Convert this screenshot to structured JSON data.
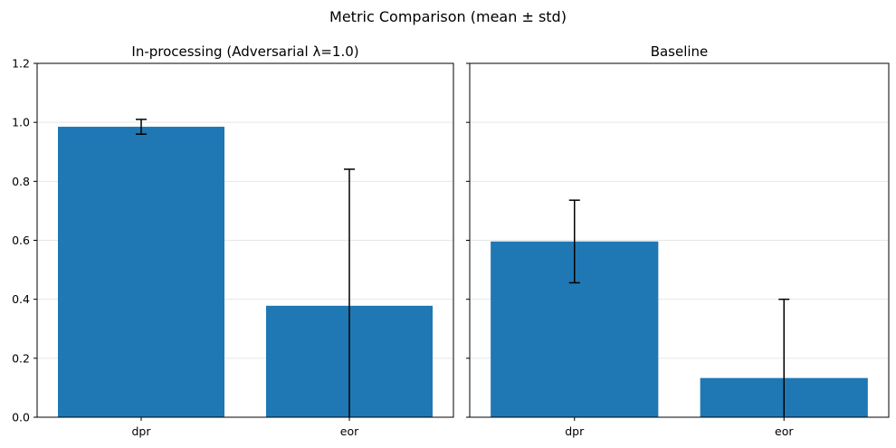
{
  "figure": {
    "title": "Metric Comparison (mean ± std)"
  },
  "colors": {
    "bar": "#1f77b4",
    "errorbar": "#000000",
    "grid": "#e6e6e6",
    "axes": "#000000"
  },
  "chart_data": [
    {
      "type": "bar",
      "title": "In-processing (Adversarial λ=1.0)",
      "xlabel": "",
      "ylabel": "",
      "categories": [
        "dpr",
        "eor"
      ],
      "values": [
        0.985,
        0.378
      ],
      "errors": [
        0.025,
        0.463
      ],
      "ylim": [
        0,
        1.2
      ],
      "yticks": [
        0.0,
        0.2,
        0.4,
        0.6,
        0.8,
        1.0,
        1.2
      ],
      "ytick_labels": [
        "0.0",
        "0.2",
        "0.4",
        "0.6",
        "0.8",
        "1.0",
        "1.2"
      ],
      "show_ytick_labels": true,
      "grid": "y"
    },
    {
      "type": "bar",
      "title": "Baseline",
      "xlabel": "",
      "ylabel": "",
      "categories": [
        "dpr",
        "eor"
      ],
      "values": [
        0.596,
        0.133
      ],
      "errors": [
        0.14,
        0.267
      ],
      "ylim": [
        0,
        1.2
      ],
      "yticks": [
        0.0,
        0.2,
        0.4,
        0.6,
        0.8,
        1.0,
        1.2
      ],
      "ytick_labels": [
        "0.0",
        "0.2",
        "0.4",
        "0.6",
        "0.8",
        "1.0",
        "1.2"
      ],
      "show_ytick_labels": false,
      "grid": "y"
    }
  ]
}
